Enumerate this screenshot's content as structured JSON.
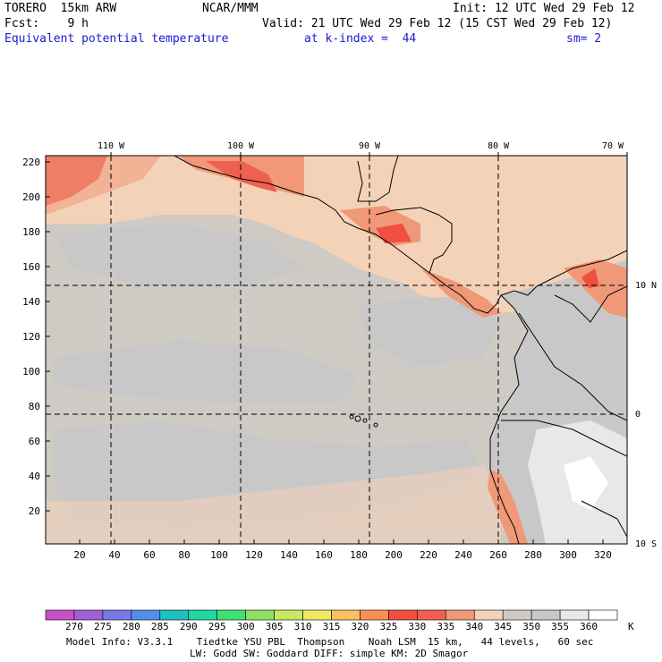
{
  "header": {
    "model": "TORERO  15km ARW",
    "center": "NCAR/MMM",
    "init": "Init: 12 UTC Wed 29 Feb 12",
    "fcst": "Fcst:    9 h",
    "valid": "Valid: 21 UTC Wed 29 Feb 12 (15 CST Wed 29 Feb 12)",
    "field": "Equivalent potential temperature",
    "level": "at k-index =  44",
    "smooth": "sm= 2"
  },
  "map": {
    "lon_labels": [
      "110 W",
      "100 W",
      "90 W",
      "80 W",
      "70 W"
    ],
    "lat_labels": [
      "10 N",
      "0",
      "10 S"
    ],
    "y_ticks": [
      "220",
      "200",
      "180",
      "160",
      "140",
      "120",
      "100",
      "80",
      "60",
      "40",
      "20"
    ],
    "x_ticks": [
      "20",
      "40",
      "60",
      "80",
      "100",
      "120",
      "140",
      "160",
      "180",
      "200",
      "220",
      "240",
      "260",
      "280",
      "300",
      "320"
    ]
  },
  "colorbar": {
    "unit": "K",
    "labels": [
      "270",
      "275",
      "280",
      "285",
      "290",
      "295",
      "300",
      "305",
      "310",
      "315",
      "320",
      "325",
      "330",
      "335",
      "340",
      "345",
      "350",
      "355",
      "360"
    ],
    "colors": [
      "#c850c8",
      "#a060d8",
      "#7878e8",
      "#5090e8",
      "#20c0c0",
      "#20d8a0",
      "#40e070",
      "#90e060",
      "#c8e860",
      "#f0e860",
      "#f8c060",
      "#f89050",
      "#f05040",
      "#f06050",
      "#f09878",
      "#f4d2b8",
      "#d0cac5",
      "#c8c8c8",
      "#e8e8e8",
      "#ffffff"
    ]
  },
  "footer": {
    "line1": "Model Info: V3.3.1    Tiedtke YSU PBL  Thompson    Noah LSM  15 km,   44 levels,   60 sec",
    "line2": "LW: Godd SW: Goddard DIFF: simple KM: 2D Smagor"
  }
}
